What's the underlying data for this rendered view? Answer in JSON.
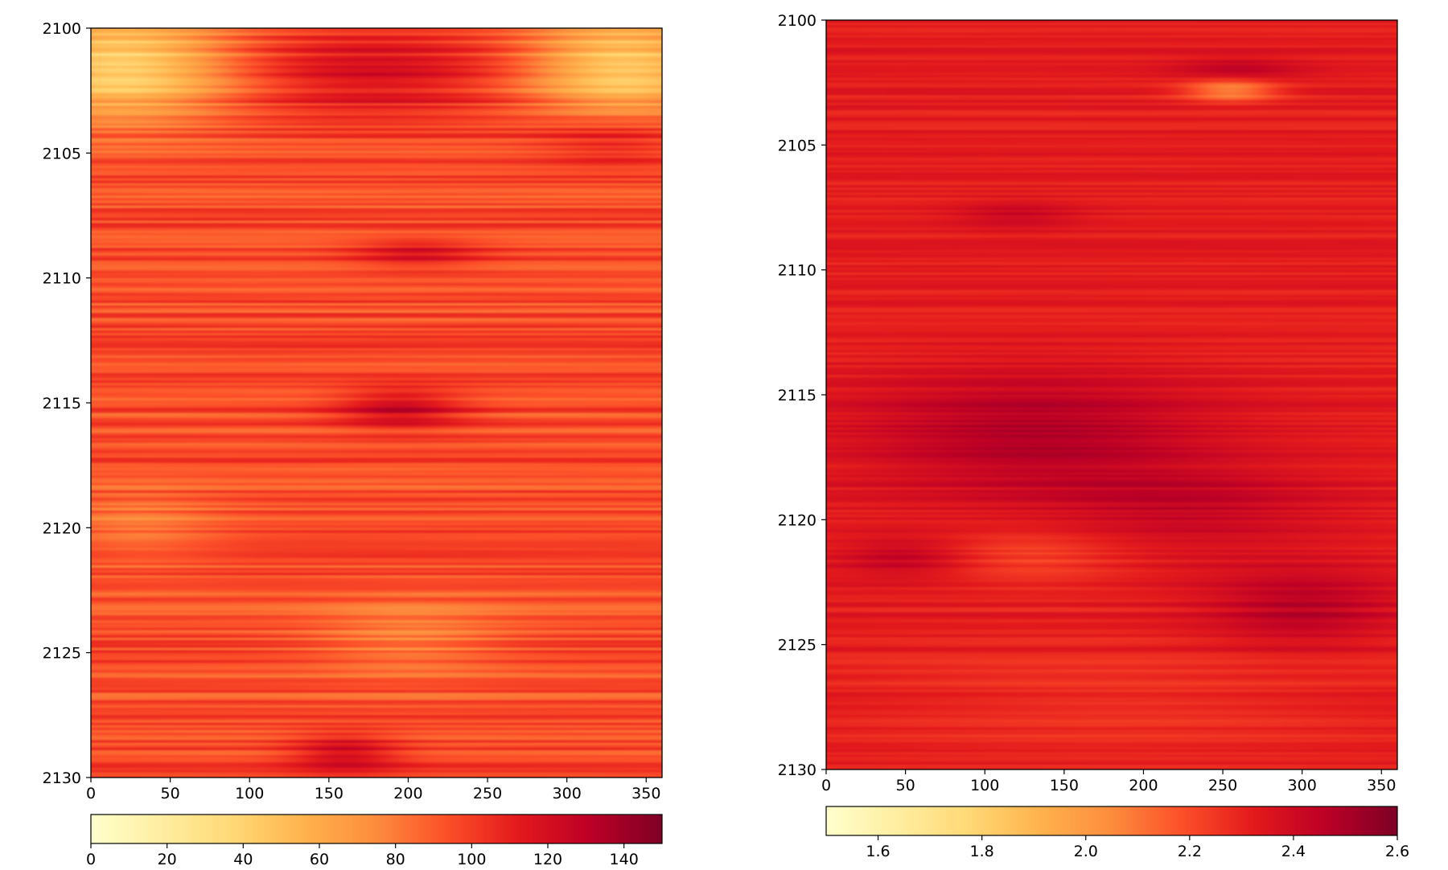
{
  "chart_data": [
    {
      "type": "heatmap",
      "title": "",
      "xlabel": "",
      "ylabel": "",
      "xlim": [
        0,
        360
      ],
      "ylim": [
        2100,
        2130
      ],
      "y_inverted": true,
      "x_ticks": [
        "0",
        "50",
        "100",
        "150",
        "200",
        "250",
        "300",
        "350"
      ],
      "y_ticks": [
        "2100",
        "2105",
        "2110",
        "2115",
        "2120",
        "2125",
        "2130"
      ],
      "colorbar": {
        "orientation": "horizontal",
        "colormap": "YlOrRd",
        "range": [
          0,
          150
        ],
        "ticks": [
          "0",
          "20",
          "40",
          "60",
          "80",
          "100",
          "120",
          "140"
        ]
      },
      "field": {
        "base": 95,
        "noise_amplitude": 18,
        "features": [
          {
            "kind": "low",
            "x_center": 20,
            "x_width": 70,
            "y_center": 2101.5,
            "y_width": 2.2,
            "amplitude": -55
          },
          {
            "kind": "low",
            "x_center": 335,
            "x_width": 60,
            "y_center": 2101.5,
            "y_width": 2.2,
            "amplitude": -50
          },
          {
            "kind": "high",
            "x_center": 175,
            "x_width": 90,
            "y_center": 2101.8,
            "y_width": 1.8,
            "amplitude": 25
          },
          {
            "kind": "high",
            "x_center": 195,
            "x_width": 40,
            "y_center": 2115.2,
            "y_width": 0.8,
            "amplitude": 30
          },
          {
            "kind": "high",
            "x_center": 160,
            "x_width": 35,
            "y_center": 2129,
            "y_width": 0.8,
            "amplitude": 28
          },
          {
            "kind": "high",
            "x_center": 205,
            "x_width": 40,
            "y_center": 2109,
            "y_width": 0.6,
            "amplitude": 22
          },
          {
            "kind": "high",
            "x_center": 330,
            "x_width": 50,
            "y_center": 2104.5,
            "y_width": 1.0,
            "amplitude": 20
          },
          {
            "kind": "low",
            "x_center": 200,
            "x_width": 60,
            "y_center": 2124.5,
            "y_width": 1.5,
            "amplitude": -18
          },
          {
            "kind": "low",
            "x_center": 30,
            "x_width": 50,
            "y_center": 2120,
            "y_width": 1.5,
            "amplitude": -15
          }
        ]
      }
    },
    {
      "type": "heatmap",
      "title": "",
      "xlabel": "",
      "ylabel": "",
      "xlim": [
        0,
        360
      ],
      "ylim": [
        2100,
        2130
      ],
      "y_inverted": true,
      "x_ticks": [
        "0",
        "50",
        "100",
        "150",
        "200",
        "250",
        "300",
        "350"
      ],
      "y_ticks": [
        "2100",
        "2105",
        "2110",
        "2115",
        "2120",
        "2125",
        "2130"
      ],
      "colorbar": {
        "orientation": "horizontal",
        "colormap": "YlOrRd",
        "range": [
          1.5,
          2.6
        ],
        "ticks": [
          "1.6",
          "1.8",
          "2.0",
          "2.2",
          "2.4",
          "2.6"
        ]
      },
      "field": {
        "base": 2.32,
        "noise_amplitude": 0.07,
        "features": [
          {
            "kind": "high",
            "x_center": 130,
            "x_width": 110,
            "y_center": 2116.5,
            "y_width": 2.5,
            "amplitude": 0.16
          },
          {
            "kind": "high",
            "x_center": 230,
            "x_width": 90,
            "y_center": 2119.5,
            "y_width": 1.8,
            "amplitude": 0.1
          },
          {
            "kind": "high",
            "x_center": 300,
            "x_width": 60,
            "y_center": 2123.5,
            "y_width": 1.6,
            "amplitude": 0.14
          },
          {
            "kind": "high",
            "x_center": 50,
            "x_width": 40,
            "y_center": 2121.5,
            "y_width": 0.8,
            "amplitude": 0.12
          },
          {
            "kind": "high",
            "x_center": 260,
            "x_width": 40,
            "y_center": 2102,
            "y_width": 0.5,
            "amplitude": 0.12
          },
          {
            "kind": "high",
            "x_center": 120,
            "x_width": 40,
            "y_center": 2107.8,
            "y_width": 0.6,
            "amplitude": 0.1
          },
          {
            "kind": "low",
            "x_center": 255,
            "x_width": 30,
            "y_center": 2102.8,
            "y_width": 0.45,
            "amplitude": -0.28
          },
          {
            "kind": "low",
            "x_center": 130,
            "x_width": 60,
            "y_center": 2121.5,
            "y_width": 1.2,
            "amplitude": -0.1
          },
          {
            "kind": "low",
            "x_center": 180,
            "x_width": 160,
            "y_center": 2127.5,
            "y_width": 2.0,
            "amplitude": -0.06
          }
        ]
      }
    }
  ]
}
